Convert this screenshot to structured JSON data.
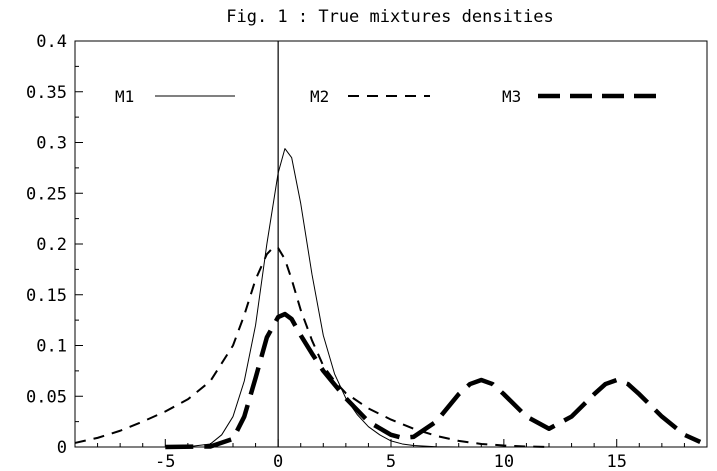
{
  "chart_data": {
    "type": "line",
    "title": "Fig. 1 : True mixtures densities",
    "xlabel": "",
    "ylabel": "",
    "xlim": [
      -9,
      19
    ],
    "ylim": [
      0,
      0.4
    ],
    "xticks": [
      -5,
      0,
      5,
      10,
      15
    ],
    "xtick_labels": [
      "-5",
      "0",
      "5",
      "10",
      "15"
    ],
    "yticks": [
      0,
      0.05,
      0.1,
      0.15,
      0.2,
      0.25,
      0.3,
      0.35,
      0.4
    ],
    "ytick_labels": [
      "0",
      "0.05",
      "0.1",
      "0.15",
      "0.2",
      "0.25",
      "0.3",
      "0.35",
      "0.4"
    ],
    "grid": false,
    "legend_position": "top",
    "series": [
      {
        "name": "M1",
        "style": "thin-solid",
        "points": [
          [
            -9,
            0
          ],
          [
            -5,
            0
          ],
          [
            -4,
            0.0003
          ],
          [
            -3,
            0.003
          ],
          [
            -2.5,
            0.012
          ],
          [
            -2,
            0.03
          ],
          [
            -1.5,
            0.065
          ],
          [
            -1,
            0.12
          ],
          [
            -0.5,
            0.2
          ],
          [
            0,
            0.27
          ],
          [
            0.3,
            0.294
          ],
          [
            0.6,
            0.285
          ],
          [
            1,
            0.24
          ],
          [
            1.5,
            0.17
          ],
          [
            2,
            0.11
          ],
          [
            2.5,
            0.072
          ],
          [
            3,
            0.048
          ],
          [
            3.5,
            0.032
          ],
          [
            4,
            0.02
          ],
          [
            4.5,
            0.012
          ],
          [
            5,
            0.006
          ],
          [
            5.5,
            0.003
          ],
          [
            6,
            0.0015
          ],
          [
            7,
            0.0003
          ],
          [
            8,
            0
          ]
        ]
      },
      {
        "name": "M2",
        "style": "dashed",
        "points": [
          [
            -9,
            0.004
          ],
          [
            -8,
            0.009
          ],
          [
            -7,
            0.016
          ],
          [
            -6,
            0.025
          ],
          [
            -5,
            0.035
          ],
          [
            -4,
            0.047
          ],
          [
            -3,
            0.065
          ],
          [
            -2,
            0.1
          ],
          [
            -1.5,
            0.13
          ],
          [
            -1,
            0.165
          ],
          [
            -0.5,
            0.19
          ],
          [
            -0.2,
            0.197
          ],
          [
            0,
            0.196
          ],
          [
            0.3,
            0.185
          ],
          [
            0.6,
            0.165
          ],
          [
            1,
            0.135
          ],
          [
            1.5,
            0.105
          ],
          [
            2,
            0.08
          ],
          [
            2.5,
            0.065
          ],
          [
            3,
            0.053
          ],
          [
            4,
            0.038
          ],
          [
            5,
            0.027
          ],
          [
            6,
            0.018
          ],
          [
            7,
            0.011
          ],
          [
            8,
            0.006
          ],
          [
            9,
            0.003
          ],
          [
            10,
            0.0015
          ],
          [
            11,
            0.0005
          ],
          [
            12,
            0
          ]
        ]
      },
      {
        "name": "M3",
        "style": "thick-long-dash",
        "points": [
          [
            -5,
            0
          ],
          [
            -3,
            0.0005
          ],
          [
            -2,
            0.008
          ],
          [
            -1.5,
            0.03
          ],
          [
            -1,
            0.068
          ],
          [
            -0.5,
            0.108
          ],
          [
            0,
            0.128
          ],
          [
            0.3,
            0.131
          ],
          [
            0.6,
            0.126
          ],
          [
            1,
            0.11
          ],
          [
            1.5,
            0.092
          ],
          [
            2,
            0.075
          ],
          [
            3,
            0.048
          ],
          [
            4,
            0.025
          ],
          [
            5,
            0.012
          ],
          [
            5.5,
            0.009
          ],
          [
            6,
            0.01
          ],
          [
            7,
            0.025
          ],
          [
            8,
            0.052
          ],
          [
            8.5,
            0.062
          ],
          [
            9,
            0.066
          ],
          [
            9.5,
            0.062
          ],
          [
            10,
            0.052
          ],
          [
            11,
            0.03
          ],
          [
            12,
            0.018
          ],
          [
            13,
            0.03
          ],
          [
            14,
            0.052
          ],
          [
            14.5,
            0.062
          ],
          [
            15,
            0.066
          ],
          [
            15.5,
            0.062
          ],
          [
            16,
            0.052
          ],
          [
            17,
            0.03
          ],
          [
            18,
            0.012
          ],
          [
            18.7,
            0.005
          ]
        ]
      }
    ],
    "colors": {
      "line": "#000000",
      "axis": "#000000",
      "background": "#ffffff"
    }
  }
}
